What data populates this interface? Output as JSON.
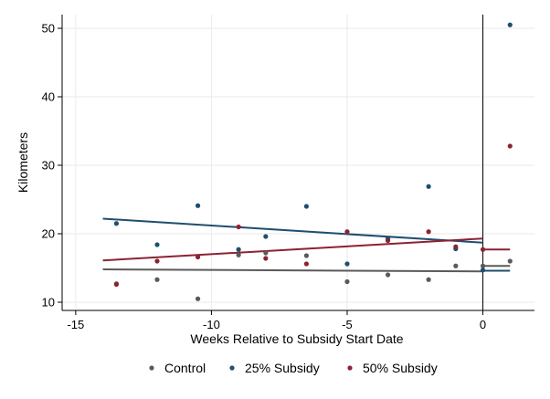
{
  "chart_data": {
    "type": "scatter",
    "title": "",
    "xlabel": "Weeks Relative to Subsidy Start Date",
    "ylabel": "Kilometers",
    "xlim": [
      -15.5,
      1.9
    ],
    "ylim": [
      8.8,
      52
    ],
    "x_ticks": [
      -15,
      -10,
      -5,
      0
    ],
    "x_tick_labels": [
      "-15",
      "-10",
      "-5",
      "0"
    ],
    "y_ticks": [
      10,
      20,
      30,
      40,
      50
    ],
    "y_tick_labels": [
      "10",
      "20",
      "30",
      "40",
      "50"
    ],
    "grid": "horizontal and vertical, light gray",
    "vertical_reference_line_x": 0,
    "legend_position": "bottom",
    "series": [
      {
        "name": "Control",
        "color": "#5a5a5a",
        "points": [
          {
            "x": -13.5,
            "y": 12.7
          },
          {
            "x": -12,
            "y": 13.3
          },
          {
            "x": -10.5,
            "y": 10.5
          },
          {
            "x": -9,
            "y": 16.9
          },
          {
            "x": -8,
            "y": 17.2
          },
          {
            "x": -6.5,
            "y": 16.8
          },
          {
            "x": -5,
            "y": 13.0
          },
          {
            "x": -3.5,
            "y": 14.0
          },
          {
            "x": -2,
            "y": 13.3
          },
          {
            "x": -1,
            "y": 15.3
          },
          {
            "x": 0,
            "y": 15.3
          },
          {
            "x": 1,
            "y": 16.0
          }
        ],
        "fit_pre": {
          "x": [
            -14,
            0
          ],
          "y": [
            14.8,
            14.5
          ]
        },
        "fit_post": {
          "x": [
            0,
            1
          ],
          "y": [
            15.3,
            15.3
          ]
        }
      },
      {
        "name": "25% Subsidy",
        "color": "#1f4e6e",
        "points": [
          {
            "x": -13.5,
            "y": 21.5
          },
          {
            "x": -12,
            "y": 18.4
          },
          {
            "x": -10.5,
            "y": 24.1
          },
          {
            "x": -9,
            "y": 17.7
          },
          {
            "x": -8,
            "y": 19.6
          },
          {
            "x": -6.5,
            "y": 24.0
          },
          {
            "x": -5,
            "y": 15.6
          },
          {
            "x": -3.5,
            "y": 19.3
          },
          {
            "x": -2,
            "y": 26.9
          },
          {
            "x": -1,
            "y": 17.8
          },
          {
            "x": 0,
            "y": 14.7
          },
          {
            "x": 1,
            "y": 50.5
          }
        ],
        "fit_pre": {
          "x": [
            -14,
            0
          ],
          "y": [
            22.2,
            18.7
          ]
        },
        "fit_post": {
          "x": [
            0,
            1
          ],
          "y": [
            14.6,
            14.6
          ]
        }
      },
      {
        "name": "50% Subsidy",
        "color": "#8b2332",
        "points": [
          {
            "x": -13.5,
            "y": 12.6
          },
          {
            "x": -12,
            "y": 16.0
          },
          {
            "x": -10.5,
            "y": 16.6
          },
          {
            "x": -9,
            "y": 21.0
          },
          {
            "x": -8,
            "y": 16.4
          },
          {
            "x": -6.5,
            "y": 15.6
          },
          {
            "x": -5,
            "y": 20.3
          },
          {
            "x": -3.5,
            "y": 19.0
          },
          {
            "x": -2,
            "y": 20.3
          },
          {
            "x": -1,
            "y": 18.1
          },
          {
            "x": 0,
            "y": 17.7
          },
          {
            "x": 1,
            "y": 32.8
          }
        ],
        "fit_pre": {
          "x": [
            -14,
            0
          ],
          "y": [
            16.1,
            19.3
          ]
        },
        "fit_post": {
          "x": [
            0,
            1
          ],
          "y": [
            17.7,
            17.7
          ]
        }
      }
    ]
  }
}
